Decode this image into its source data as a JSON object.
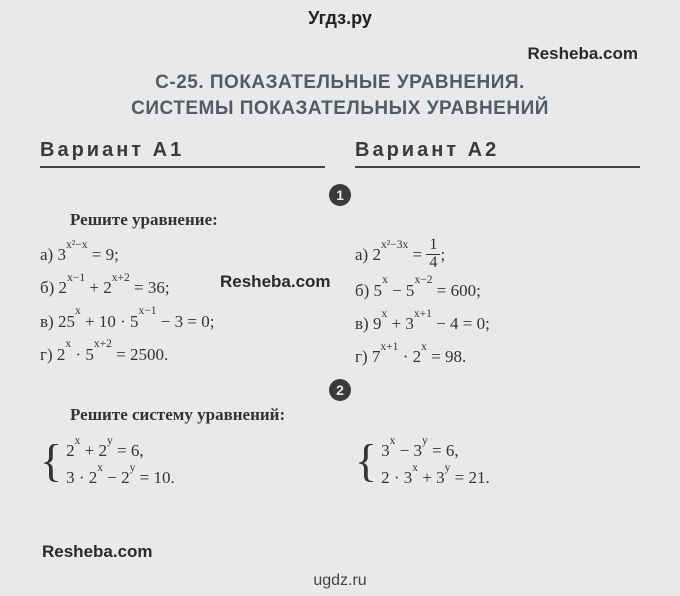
{
  "watermarks": {
    "top": "Угдз.ру",
    "bottom": "ugdz.ru",
    "resheba": "Resheba.com"
  },
  "section_title_line1": "С-25. ПОКАЗАТЕЛЬНЫЕ УРАВНЕНИЯ.",
  "section_title_line2": "СИСТЕМЫ ПОКАЗАТЕЛЬНЫХ УРАВНЕНИЙ",
  "variant_a1": "Вариант А1",
  "variant_a2": "Вариант А2",
  "task1": {
    "number": "1",
    "instruction": "Решите уравнение:",
    "a1": {
      "a_prefix": "а) 3",
      "a_exp": "x²−x",
      "a_suffix": " = 9;",
      "b_prefix": "б) 2",
      "b_exp1": "x−1",
      "b_mid": " + 2",
      "b_exp2": "x+2",
      "b_suffix": " = 36;",
      "c_prefix": "в) 25",
      "c_exp1": "x",
      "c_mid": " + 10 · 5",
      "c_exp2": "x−1",
      "c_suffix": " − 3 = 0;",
      "d_prefix": "г) 2",
      "d_exp1": "x",
      "d_mid": " · 5",
      "d_exp2": "x+2",
      "d_suffix": " = 2500."
    },
    "a2": {
      "a_prefix": "а) 2",
      "a_exp": "x²−3x",
      "a_eq": " = ",
      "a_num": "1",
      "a_den": "4",
      "a_suffix": ";",
      "b_prefix": "б) 5",
      "b_exp1": "x",
      "b_mid": " − 5",
      "b_exp2": "x−2",
      "b_suffix": " = 600;",
      "c_prefix": "в) 9",
      "c_exp1": "x",
      "c_mid": " + 3",
      "c_exp2": "x+1",
      "c_suffix": " − 4 = 0;",
      "d_prefix": "г) 7",
      "d_exp1": "x+1",
      "d_mid": " · 2",
      "d_exp2": "x",
      "d_suffix": " = 98."
    }
  },
  "task2": {
    "number": "2",
    "instruction": "Решите систему уравнений:",
    "a1": {
      "l1_p1": "2",
      "l1_e1": "x",
      "l1_p2": " + 2",
      "l1_e2": "y",
      "l1_p3": " = 6,",
      "l2_p1": "3 · 2",
      "l2_e1": "x",
      "l2_p2": " − 2",
      "l2_e2": "y",
      "l2_p3": " = 10."
    },
    "a2": {
      "l1_p1": "3",
      "l1_e1": "x",
      "l1_p2": " − 3",
      "l1_e2": "y",
      "l1_p3": " = 6,",
      "l2_p1": "2 · 3",
      "l2_e1": "x",
      "l2_p2": " + 3",
      "l2_e2": "y",
      "l2_p3": " = 21."
    }
  },
  "colors": {
    "background": "#e8e9eb",
    "title": "#555a66",
    "text": "#333333"
  }
}
